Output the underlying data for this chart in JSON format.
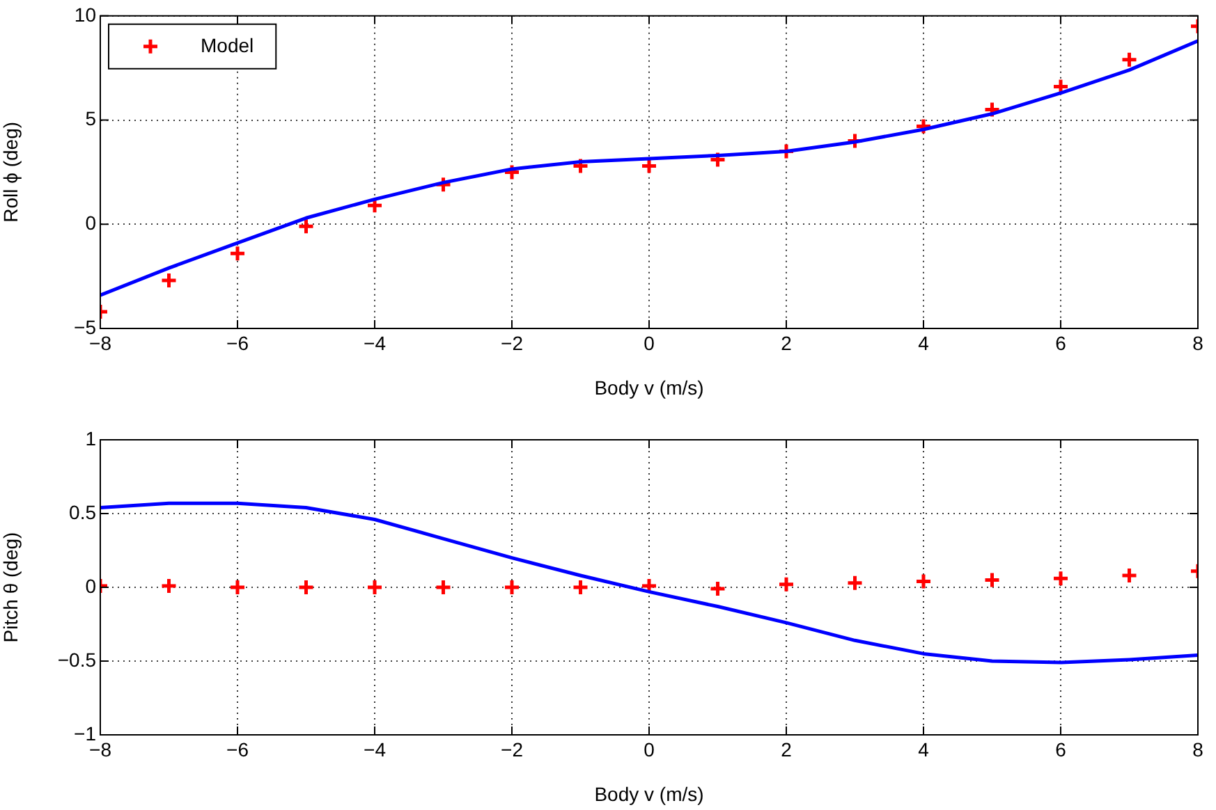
{
  "chart_data": [
    {
      "type": "line",
      "xlabel": "Body v (m/s)",
      "ylabel": "Roll ϕ (deg)",
      "x": [
        -8,
        -7,
        -6,
        -5,
        -4,
        -3,
        -2,
        -1,
        0,
        1,
        2,
        3,
        4,
        5,
        6,
        7,
        8
      ],
      "xlim": [
        -8,
        8
      ],
      "xticks": [
        -8,
        -6,
        -4,
        -2,
        0,
        2,
        4,
        6,
        8
      ],
      "ylim": [
        -5,
        10
      ],
      "yticks": [
        -5,
        0,
        5,
        10
      ],
      "grid": true,
      "legend": "top left",
      "series": [
        {
          "color": "#0000ff",
          "line_style": "solid",
          "marker": "none",
          "values": [
            -3.4,
            -2.1,
            -0.9,
            0.3,
            1.2,
            2.0,
            2.65,
            3.0,
            3.15,
            3.3,
            3.5,
            3.95,
            4.55,
            5.3,
            6.3,
            7.4,
            8.8
          ]
        },
        {
          "name": "Model",
          "type": "scatter",
          "color": "#ff0000",
          "marker": "cross",
          "values": [
            -4.2,
            -2.7,
            -1.4,
            -0.1,
            0.9,
            1.9,
            2.5,
            2.8,
            2.8,
            3.1,
            3.5,
            4.0,
            4.7,
            5.5,
            6.6,
            7.9,
            9.5
          ]
        }
      ]
    },
    {
      "type": "line",
      "xlabel": "Body v (m/s)",
      "ylabel": "Pitch θ (deg)",
      "x": [
        -8,
        -7,
        -6,
        -5,
        -4,
        -3,
        -2,
        -1,
        0,
        1,
        2,
        3,
        4,
        5,
        6,
        7,
        8
      ],
      "xlim": [
        -8,
        8
      ],
      "xticks": [
        -8,
        -6,
        -4,
        -2,
        0,
        2,
        4,
        6,
        8
      ],
      "ylim": [
        -1,
        1
      ],
      "yticks": [
        -1,
        -0.5,
        0,
        0.5,
        1
      ],
      "grid": true,
      "series": [
        {
          "color": "#0000ff",
          "line_style": "solid",
          "marker": "none",
          "values": [
            0.54,
            0.57,
            0.57,
            0.54,
            0.46,
            0.33,
            0.2,
            0.08,
            -0.03,
            -0.13,
            -0.24,
            -0.36,
            -0.45,
            -0.5,
            -0.51,
            -0.49,
            -0.46
          ]
        },
        {
          "type": "scatter",
          "color": "#ff0000",
          "marker": "cross",
          "values": [
            0.01,
            0.01,
            0,
            0,
            0,
            0,
            0,
            0,
            0.01,
            -0.01,
            0.02,
            0.03,
            0.04,
            0.05,
            0.06,
            0.08,
            0.11
          ]
        }
      ]
    }
  ]
}
